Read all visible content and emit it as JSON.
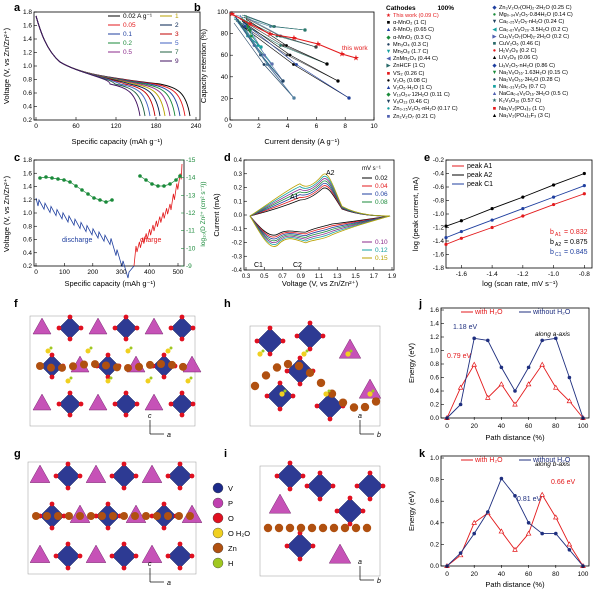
{
  "figure": {
    "panel_labels": [
      "a",
      "b",
      "c",
      "d",
      "e",
      "f",
      "g",
      "h",
      "i",
      "j",
      "k"
    ]
  },
  "panel_a": {
    "xlabel": "Specific capacity (mAh g⁻¹)",
    "ylabel": "Voltage (V, vs Zn/Zn²⁺)",
    "xticks": [
      "0",
      "60",
      "120",
      "180",
      "240"
    ],
    "yticks": [
      "0.2",
      "0.4",
      "0.6",
      "0.8",
      "1.0",
      "1.2",
      "1.4",
      "1.6",
      "1.8"
    ],
    "legend_left": [
      {
        "label": "0.02 A g⁻¹",
        "color": "#000000"
      },
      {
        "label": "0.05",
        "color": "#e31a1c"
      },
      {
        "label": "0.1",
        "color": "#1f3f9f"
      },
      {
        "label": "0.2",
        "color": "#1a8a3a"
      },
      {
        "label": "0.5",
        "color": "#8b2a8b"
      }
    ],
    "legend_right": [
      {
        "label": "1",
        "color": "#b8a000"
      },
      {
        "label": "2",
        "color": "#00204f"
      },
      {
        "label": "3",
        "color": "#c00000"
      },
      {
        "label": "5",
        "color": "#4060c0"
      },
      {
        "label": "7",
        "color": "#206040"
      },
      {
        "label": "9",
        "color": "#401060"
      }
    ]
  },
  "panel_b": {
    "xlabel": "Current density (A g⁻¹)",
    "ylabel": "Capacity retention (%)",
    "xticks": [
      "0",
      "2",
      "4",
      "6",
      "8",
      "10"
    ],
    "yticks": [
      "0",
      "20",
      "40",
      "60",
      "80",
      "100"
    ],
    "annotation": "this work",
    "legend_header": [
      "Cathodes",
      "100%"
    ],
    "legend_col1": [
      "This work (0.09 C)",
      "α-MnO₂ (1 C)",
      "δ-MnO₂ (0.65 C)",
      "α-MnO₂ (0.3 C)",
      "Mn₃O₄ (0.3 C)",
      "Mn₅O₈ (1.7 C)",
      "ZnMn₂O₄ (0.44 C)",
      "ZnHCF (1 C)",
      "VS₂ (0.26 C)",
      "V₂O₅ (0.08 C)",
      "V₂O₅·H₂O (1 C)",
      "V₁₀O₂₄·12H₂O (0.11 C)",
      "V₆O₁₃ (0.46 C)",
      "Zn₀.₂₅V₂O₅·nH₂O (0.17 C)",
      "Zn₂V₂O₇ (0.21 C)"
    ],
    "legend_col2": [
      "Zn₃V₂O₇(OH)₂·2H₂O (0.25 C)",
      "Mg₀.₃₄V₂O₅·0.84H₂O (0.14 C)",
      "Ca₀.₂₅V₂O₅·nH₂O (0.24 C)",
      "Ca₀.₆₇V₈O₂₀·3.5H₂O (0.2 C)",
      "Cu₃V₂O₇(OH)₂·2H₂O (0.2 C)",
      "CuV₂O₆ (0.46 C)",
      "H₂V₃O₈ (0.2 C)",
      "LiV₃O₈ (0.06 C)",
      "LiₓV₂O₅·nH₂O (0.86 C)",
      "Na₂V₆O₁₆·1.63H₂O (0.15 C)",
      "Na₂V₆O₁₆·3H₂O (0.28 C)",
      "Na₀.₃₃V₂O₅ (0.7 C)",
      "NaCa₀.₆V₆O₁₆·3H₂O (0.5 C)",
      "K₂V₆O₁₆ (0.57 C)",
      "Na₃V₂(PO₄)₃ (1 C)",
      "Na₃V₂(PO₄)₂F₃ (3 C)"
    ]
  },
  "panel_c": {
    "xlabel": "Specific capacity (mAh g⁻¹)",
    "ylabel_left": "Voltage (V, vs Zn/Zn²⁺)",
    "ylabel_right": "log₁₀(D Zn²⁺ (cm² s⁻¹))",
    "xticks": [
      "0",
      "100",
      "200",
      "300",
      "400",
      "500"
    ],
    "yticks_left": [
      "0.2",
      "0.4",
      "0.6",
      "0.8",
      "1.0",
      "1.2",
      "1.4",
      "1.6",
      "1.8"
    ],
    "yticks_right": [
      "-9",
      "-10",
      "-11",
      "-12",
      "-13",
      "-14",
      "-15"
    ],
    "label_discharge": "discharge",
    "label_charge": "charge"
  },
  "panel_d": {
    "xlabel": "Voltage (V, vs Zn/Zn²⁺)",
    "ylabel": "Current (mA)",
    "xticks": [
      "0.3",
      "0.5",
      "0.7",
      "0.9",
      "1.1",
      "1.3",
      "1.5",
      "1.7",
      "1.9"
    ],
    "yticks": [
      "-0.4",
      "-0.3",
      "-0.2",
      "-0.1",
      "0.0",
      "0.1",
      "0.2",
      "0.3",
      "0.4"
    ],
    "peak_labels": [
      "A1",
      "A2",
      "C1",
      "C2"
    ],
    "unit": "mV s⁻¹",
    "legend_top": [
      {
        "label": "0.02",
        "color": "#000000"
      },
      {
        "label": "0.04",
        "color": "#e31a1c"
      },
      {
        "label": "0.06",
        "color": "#1f3f9f"
      },
      {
        "label": "0.08",
        "color": "#1a8a3a"
      }
    ],
    "legend_bottom": [
      {
        "label": "0.10",
        "color": "#8b2a8b"
      },
      {
        "label": "0.12",
        "color": "#16a0a0"
      },
      {
        "label": "0.15",
        "color": "#b8a000"
      }
    ]
  },
  "panel_e": {
    "xlabel": "log (scan rate, mV s⁻¹)",
    "ylabel": "log (peak current, mA)",
    "xticks": [
      "-1.6",
      "-1.4",
      "-1.2",
      "-1.0",
      "-0.8"
    ],
    "yticks": [
      "-1.8",
      "-1.6",
      "-1.4",
      "-1.2",
      "-1.0",
      "-0.8",
      "-0.6",
      "-0.4",
      "-0.2"
    ],
    "legend": [
      {
        "label": "peak A1",
        "color": "#e31a1c"
      },
      {
        "label": "peak A2",
        "color": "#000000"
      },
      {
        "label": "peak C1",
        "color": "#1f3f9f"
      }
    ],
    "b_values": [
      {
        "label": "b",
        "sub": "A1",
        "value": "= 0.832",
        "color": "#e31a1c"
      },
      {
        "label": "b",
        "sub": "A2",
        "value": "= 0.875",
        "color": "#000000"
      },
      {
        "label": "b",
        "sub": "C1",
        "value": "= 0.845",
        "color": "#1f3f9f"
      }
    ]
  },
  "panel_g_legend": [
    {
      "label": "V",
      "color": "#1c2a8a"
    },
    {
      "label": "P",
      "color": "#c040b0"
    },
    {
      "label": "O",
      "color": "#e01020"
    },
    {
      "label": "O H₂O",
      "color": "#f0d020"
    },
    {
      "label": "Zn",
      "color": "#b05010"
    },
    {
      "label": "H",
      "color": "#a0c820"
    }
  ],
  "axis_labels": {
    "a": "a",
    "b": "b",
    "c": "c"
  },
  "panel_j": {
    "xlabel": "Path distance (%)",
    "ylabel": "Energy (eV)",
    "xticks": [
      "0",
      "20",
      "40",
      "60",
      "80",
      "100"
    ],
    "yticks": [
      "0.0",
      "0.2",
      "0.4",
      "0.6",
      "0.8",
      "1.0",
      "1.2",
      "1.4",
      "1.6"
    ],
    "legend": [
      {
        "label": "with H₂O",
        "color": "#e31a1c"
      },
      {
        "label": "without H₂O",
        "color": "#1f2f7f"
      }
    ],
    "note": "along a-axis",
    "annot_blue": "1.18 eV",
    "annot_red": "0.79 eV"
  },
  "panel_k": {
    "xlabel": "Path distance (%)",
    "ylabel": "Energy (eV)",
    "xticks": [
      "0",
      "20",
      "40",
      "60",
      "80",
      "100"
    ],
    "yticks": [
      "0.0",
      "0.2",
      "0.4",
      "0.6",
      "0.8",
      "1.0"
    ],
    "legend": [
      {
        "label": "with H₂O",
        "color": "#e31a1c"
      },
      {
        "label": "without H₂O",
        "color": "#1f2f7f"
      }
    ],
    "note": "along b-axis",
    "annot_blue": "0.81 eV",
    "annot_red": "0.66 eV"
  },
  "chart_data": [
    {
      "type": "line",
      "panel": "j",
      "x": [
        0,
        10,
        20,
        30,
        40,
        50,
        60,
        70,
        80,
        90,
        100
      ],
      "series": [
        {
          "name": "with H₂O",
          "values": [
            0.0,
            0.45,
            0.79,
            0.3,
            0.5,
            0.2,
            0.5,
            0.79,
            0.45,
            0.25,
            0.0
          ]
        },
        {
          "name": "without H₂O",
          "values": [
            0.0,
            0.2,
            1.18,
            1.15,
            0.75,
            0.4,
            0.75,
            1.15,
            1.18,
            0.6,
            0.0
          ]
        }
      ],
      "xlabel": "Path distance (%)",
      "ylabel": "Energy (eV)",
      "xlim": [
        0,
        100
      ],
      "ylim": [
        0,
        1.6
      ]
    },
    {
      "type": "line",
      "panel": "k",
      "x": [
        0,
        10,
        20,
        30,
        40,
        50,
        60,
        70,
        80,
        90,
        100
      ],
      "series": [
        {
          "name": "with H₂O",
          "values": [
            0.0,
            0.1,
            0.4,
            0.49,
            0.32,
            0.15,
            0.3,
            0.66,
            0.45,
            0.2,
            0.0
          ]
        },
        {
          "name": "without H₂O",
          "values": [
            0.0,
            0.12,
            0.3,
            0.5,
            0.81,
            0.65,
            0.4,
            0.3,
            0.3,
            0.15,
            0.0
          ]
        }
      ],
      "xlabel": "Path distance (%)",
      "ylabel": "Energy (eV)",
      "xlim": [
        0,
        100
      ],
      "ylim": [
        0,
        1.0
      ]
    },
    {
      "type": "line",
      "panel": "e",
      "x": [
        -1.7,
        -1.6,
        -1.4,
        -1.2,
        -1.0,
        -0.8
      ],
      "series": [
        {
          "name": "peak A1",
          "values": [
            -1.45,
            -1.36,
            -1.2,
            -1.03,
            -0.86,
            -0.7
          ]
        },
        {
          "name": "peak A2",
          "values": [
            -1.18,
            -1.1,
            -0.92,
            -0.75,
            -0.57,
            -0.4
          ]
        },
        {
          "name": "peak C1",
          "values": [
            -1.35,
            -1.26,
            -1.09,
            -0.92,
            -0.75,
            -0.58
          ]
        }
      ],
      "xlabel": "log (scan rate, mV s⁻¹)",
      "ylabel": "log (peak current, mA)",
      "xlim": [
        -1.7,
        -0.75
      ],
      "ylim": [
        -1.8,
        -0.2
      ]
    }
  ]
}
